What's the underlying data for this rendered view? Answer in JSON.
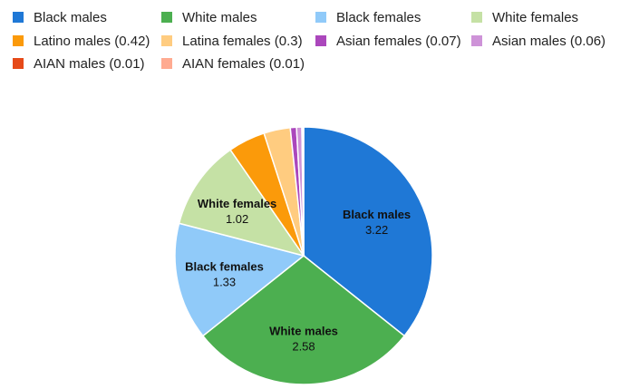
{
  "chart_data": {
    "type": "pie",
    "title": "",
    "slices": [
      {
        "label": "Black males",
        "legend": "Black males",
        "value": 3.22,
        "value_label": "3.22",
        "color": "#1f78d6"
      },
      {
        "label": "White males",
        "legend": "White males",
        "value": 2.58,
        "value_label": "2.58",
        "color": "#4caf50"
      },
      {
        "label": "Black females",
        "legend": "Black females",
        "value": 1.33,
        "value_label": "1.33",
        "color": "#90caf9"
      },
      {
        "label": "White females",
        "legend": "White females",
        "value": 1.02,
        "value_label": "1.02",
        "color": "#c5e1a5"
      },
      {
        "label": "Latino males",
        "legend": "Latino males (0.42)",
        "value": 0.42,
        "color": "#fb9a0a"
      },
      {
        "label": "Latina females",
        "legend": "Latina females (0.3)",
        "value": 0.3,
        "color": "#ffcc80"
      },
      {
        "label": "Asian females",
        "legend": "Asian females (0.07)",
        "value": 0.07,
        "color": "#ab47bc"
      },
      {
        "label": "Asian males",
        "legend": "Asian males (0.06)",
        "value": 0.06,
        "color": "#ce93d8"
      },
      {
        "label": "AIAN males",
        "legend": "AIAN males (0.01)",
        "value": 0.01,
        "color": "#e64a19"
      },
      {
        "label": "AIAN females",
        "legend": "AIAN females (0.01)",
        "value": 0.01,
        "color": "#ffab91"
      }
    ],
    "legend_order": [
      "Black males",
      "White males",
      "Black females",
      "White females",
      "Latino males",
      "Latina females",
      "Asian females",
      "Asian males",
      "AIAN males",
      "AIAN females"
    ],
    "legend_placement": "top",
    "slice_order": "clockwise from 12 o'clock"
  }
}
